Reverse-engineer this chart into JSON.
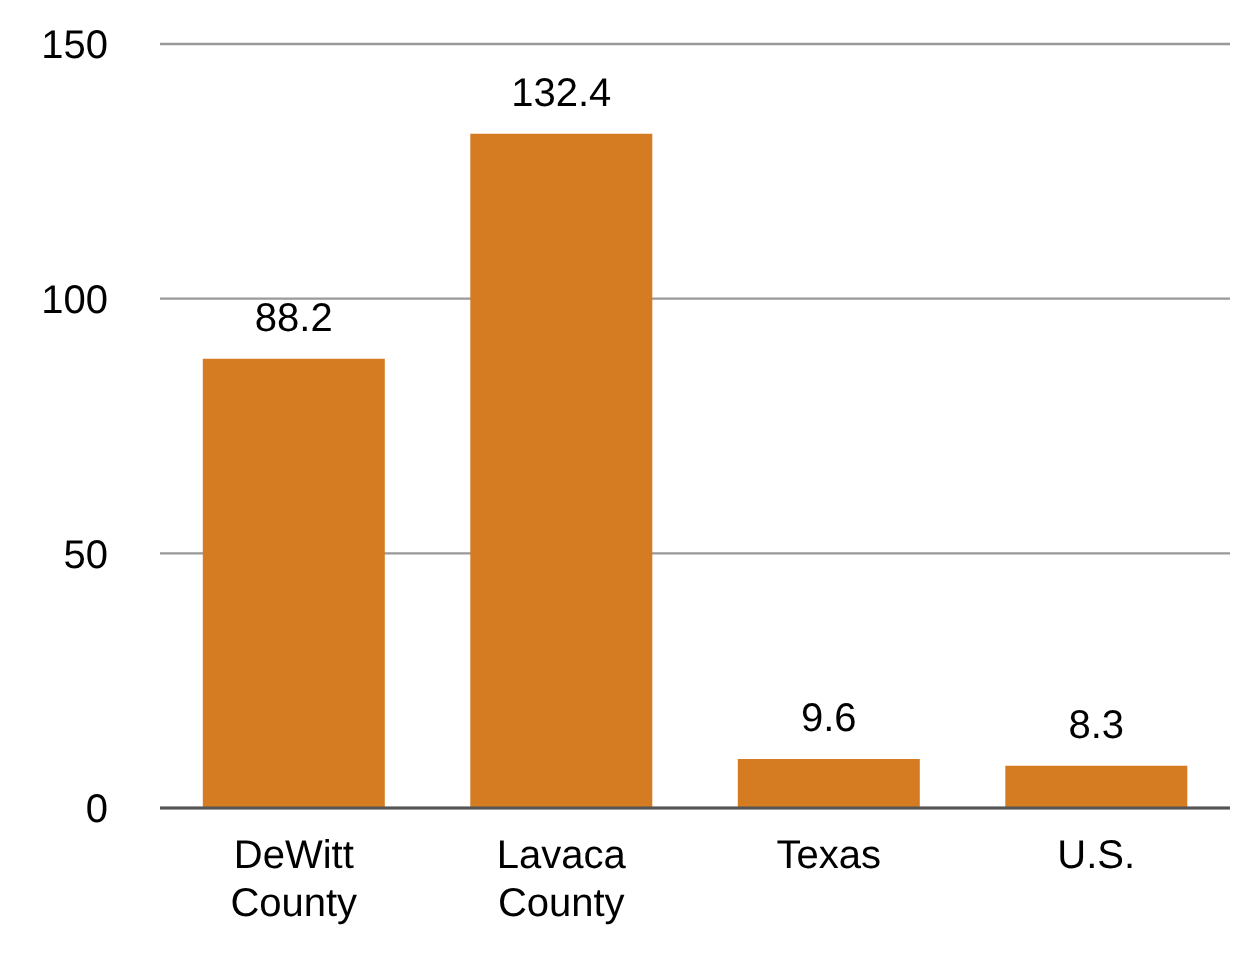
{
  "chart_data": {
    "type": "bar",
    "categories": [
      "DeWitt County",
      "Lavaca County",
      "Texas",
      "U.S."
    ],
    "values": [
      88.2,
      132.4,
      9.6,
      8.3
    ],
    "color": "#d57c22",
    "ylim": [
      0,
      150
    ],
    "yticks": [
      0,
      50,
      100,
      150
    ],
    "grid": "y",
    "data_labels": true
  }
}
